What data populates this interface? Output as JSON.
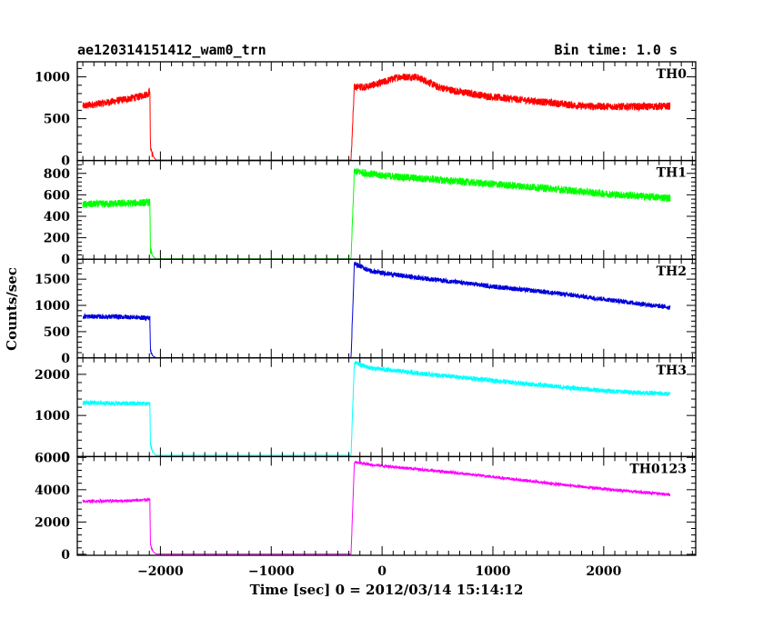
{
  "chart_data": {
    "type": "line",
    "title_left": "ae120314151412_wam0_trn",
    "title_right": "Bin time: 1.0 s",
    "xlabel": "Time [sec] 0 = 2012/03/14 15:14:12",
    "ylabel": "Counts/sec",
    "xlim": [
      -2750,
      2830
    ],
    "x_ticks": [
      -2000,
      -1000,
      0,
      1000,
      2000
    ],
    "x_tick_labels": [
      "−2000",
      "−1000",
      "0",
      "1000",
      "2000"
    ],
    "grid": false,
    "legend": "none",
    "panels": [
      {
        "name": "TH0",
        "color": "#ff0000",
        "ylim": [
          0,
          1180
        ],
        "y_ticks": [
          0,
          500,
          1000
        ],
        "y_tick_labels": [
          "0",
          "500",
          "1000"
        ],
        "noise": 45,
        "points": [
          [
            -2700,
            650
          ],
          [
            -2450,
            700
          ],
          [
            -2200,
            760
          ],
          [
            -2110,
            800
          ],
          [
            -2095,
            850
          ],
          [
            -2090,
            170
          ],
          [
            -2070,
            60
          ],
          [
            -2040,
            5
          ],
          [
            -280,
            5
          ],
          [
            -250,
            880
          ],
          [
            -150,
            880
          ],
          [
            0,
            930
          ],
          [
            150,
            1000
          ],
          [
            300,
            1000
          ],
          [
            400,
            950
          ],
          [
            500,
            880
          ],
          [
            700,
            820
          ],
          [
            1000,
            760
          ],
          [
            1300,
            720
          ],
          [
            1600,
            680
          ],
          [
            1800,
            650
          ],
          [
            2100,
            645
          ],
          [
            2400,
            645
          ],
          [
            2600,
            650
          ]
        ]
      },
      {
        "name": "TH1",
        "color": "#00ff00",
        "ylim": [
          0,
          920
        ],
        "y_ticks": [
          0,
          200,
          400,
          600,
          800
        ],
        "y_tick_labels": [
          "0",
          "200",
          "400",
          "600",
          "800"
        ],
        "noise": 35,
        "points": [
          [
            -2700,
            510
          ],
          [
            -2300,
            520
          ],
          [
            -2095,
            530
          ],
          [
            -2090,
            80
          ],
          [
            -2070,
            30
          ],
          [
            -2040,
            3
          ],
          [
            -280,
            3
          ],
          [
            -250,
            820
          ],
          [
            0,
            780
          ],
          [
            500,
            740
          ],
          [
            1000,
            700
          ],
          [
            1500,
            660
          ],
          [
            2000,
            610
          ],
          [
            2600,
            570
          ]
        ]
      },
      {
        "name": "TH2",
        "color": "#0000dd",
        "ylim": [
          0,
          1880
        ],
        "y_ticks": [
          0,
          500,
          1000,
          1500
        ],
        "y_tick_labels": [
          "0",
          "500",
          "1000",
          "1500"
        ],
        "noise": 45,
        "points": [
          [
            -2700,
            790
          ],
          [
            -2300,
            780
          ],
          [
            -2095,
            760
          ],
          [
            -2090,
            150
          ],
          [
            -2070,
            40
          ],
          [
            -2040,
            3
          ],
          [
            -280,
            3
          ],
          [
            -250,
            1800
          ],
          [
            -100,
            1650
          ],
          [
            200,
            1560
          ],
          [
            600,
            1460
          ],
          [
            1000,
            1360
          ],
          [
            1500,
            1250
          ],
          [
            2000,
            1120
          ],
          [
            2600,
            960
          ]
        ]
      },
      {
        "name": "TH3",
        "color": "#00ffff",
        "ylim": [
          0,
          2400
        ],
        "y_ticks": [
          0,
          1000,
          2000
        ],
        "y_tick_labels": [
          "0",
          "1000",
          "2000"
        ],
        "noise": 55,
        "points": [
          [
            -2700,
            1310
          ],
          [
            -2300,
            1290
          ],
          [
            -2095,
            1290
          ],
          [
            -2090,
            300
          ],
          [
            -2070,
            120
          ],
          [
            -2040,
            30
          ],
          [
            -280,
            30
          ],
          [
            -250,
            2280
          ],
          [
            -100,
            2150
          ],
          [
            500,
            1980
          ],
          [
            1000,
            1850
          ],
          [
            1500,
            1720
          ],
          [
            2000,
            1600
          ],
          [
            2600,
            1520
          ]
        ]
      },
      {
        "name": "TH0123",
        "color": "#ff00ff",
        "ylim": [
          -60,
          6050
        ],
        "y_ticks": [
          0,
          2000,
          4000,
          6000
        ],
        "y_tick_labels": [
          "0",
          "2000",
          "4000",
          "6000"
        ],
        "noise": 90,
        "points": [
          [
            -2700,
            3280
          ],
          [
            -2300,
            3320
          ],
          [
            -2095,
            3380
          ],
          [
            -2090,
            600
          ],
          [
            -2070,
            200
          ],
          [
            -2040,
            20
          ],
          [
            -280,
            20
          ],
          [
            -250,
            5700
          ],
          [
            -100,
            5550
          ],
          [
            500,
            5150
          ],
          [
            1000,
            4800
          ],
          [
            1500,
            4400
          ],
          [
            2000,
            4050
          ],
          [
            2600,
            3700
          ]
        ]
      }
    ]
  }
}
